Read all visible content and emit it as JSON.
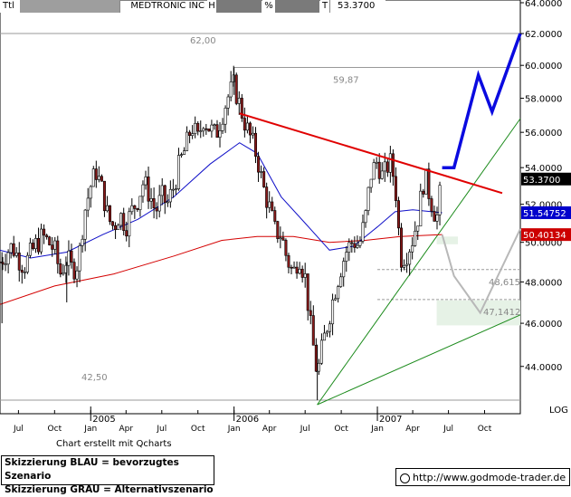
{
  "header": {
    "ticker": "Ttl",
    "name": "MEDTRONIC INC",
    "field_h": "H",
    "field_pct": "%",
    "field_t": "T",
    "last": "53.3700"
  },
  "chart_data": {
    "type": "candlestick",
    "y_scale": "log",
    "y_ticks": [
      {
        "value": 64.0,
        "label": "64.0000"
      },
      {
        "value": 62.0,
        "label": "62.0000"
      },
      {
        "value": 60.0,
        "label": "60.0000"
      },
      {
        "value": 58.0,
        "label": "58.0000"
      },
      {
        "value": 56.0,
        "label": "56.0000"
      },
      {
        "value": 54.0,
        "label": "54.0000"
      },
      {
        "value": 52.0,
        "label": "52.0000"
      },
      {
        "value": 50.0,
        "label": "50.0000"
      },
      {
        "value": 48.0,
        "label": "48.0000"
      },
      {
        "value": 46.0,
        "label": "46.0000"
      },
      {
        "value": 44.0,
        "label": "44.0000"
      }
    ],
    "ylim": [
      42.3,
      64.0
    ],
    "x_range": [
      "2004-05-15",
      "2007-12-31"
    ],
    "x_ticks": [
      {
        "date": "2004-07-01",
        "label": "Jul"
      },
      {
        "date": "2004-10-01",
        "label": "Oct"
      },
      {
        "date": "2005-01-01",
        "label": "Jan",
        "year": "2005"
      },
      {
        "date": "2005-04-01",
        "label": "Apr"
      },
      {
        "date": "2005-07-01",
        "label": "Jul"
      },
      {
        "date": "2005-10-01",
        "label": "Oct"
      },
      {
        "date": "2006-01-01",
        "label": "Jan",
        "year": "2006"
      },
      {
        "date": "2006-04-01",
        "label": "Apr"
      },
      {
        "date": "2006-07-01",
        "label": "Jul"
      },
      {
        "date": "2006-10-01",
        "label": "Oct"
      },
      {
        "date": "2007-01-01",
        "label": "Jan",
        "year": "2007"
      },
      {
        "date": "2007-04-01",
        "label": "Apr"
      },
      {
        "date": "2007-07-01",
        "label": "Jul"
      },
      {
        "date": "2007-10-01",
        "label": "Oct"
      }
    ],
    "log_label": "LOG",
    "price_series": [
      [
        "2004-05-15",
        49.0
      ],
      [
        "2004-06-01",
        49.5
      ],
      [
        "2004-06-15",
        49.8
      ],
      [
        "2004-07-01",
        49.2
      ],
      [
        "2004-07-15",
        48.8
      ],
      [
        "2004-08-01",
        49.4
      ],
      [
        "2004-08-15",
        49.9
      ],
      [
        "2004-09-01",
        50.3
      ],
      [
        "2004-09-15",
        50.0
      ],
      [
        "2004-10-01",
        49.6
      ],
      [
        "2004-10-15",
        48.4
      ],
      [
        "2004-11-01",
        49.2
      ],
      [
        "2004-11-15",
        48.6
      ],
      [
        "2004-12-01",
        49.0
      ],
      [
        "2004-12-15",
        51.5
      ],
      [
        "2005-01-01",
        53.0
      ],
      [
        "2005-01-15",
        53.8
      ],
      [
        "2005-02-01",
        52.6
      ],
      [
        "2005-02-15",
        51.2
      ],
      [
        "2005-03-01",
        50.8
      ],
      [
        "2005-03-15",
        51.5
      ],
      [
        "2005-04-01",
        50.9
      ],
      [
        "2005-04-15",
        51.6
      ],
      [
        "2005-05-01",
        52.3
      ],
      [
        "2005-05-15",
        53.2
      ],
      [
        "2005-06-01",
        52.5
      ],
      [
        "2005-06-15",
        51.6
      ],
      [
        "2005-07-01",
        52.4
      ],
      [
        "2005-07-15",
        52.0
      ],
      [
        "2005-08-01",
        53.0
      ],
      [
        "2005-08-15",
        54.2
      ],
      [
        "2005-09-01",
        55.2
      ],
      [
        "2005-09-15",
        56.4
      ],
      [
        "2005-10-01",
        55.6
      ],
      [
        "2005-10-15",
        56.8
      ],
      [
        "2005-11-01",
        56.2
      ],
      [
        "2005-11-15",
        55.8
      ],
      [
        "2005-12-01",
        57.0
      ],
      [
        "2005-12-15",
        58.0
      ],
      [
        "2006-01-01",
        58.8
      ],
      [
        "2006-01-15",
        57.6
      ],
      [
        "2006-02-01",
        56.3
      ],
      [
        "2006-02-15",
        55.5
      ],
      [
        "2006-03-01",
        54.6
      ],
      [
        "2006-03-15",
        53.0
      ],
      [
        "2006-04-01",
        51.8
      ],
      [
        "2006-04-15",
        50.6
      ],
      [
        "2006-05-01",
        50.4
      ],
      [
        "2006-05-15",
        49.2
      ],
      [
        "2006-06-01",
        48.4
      ],
      [
        "2006-06-15",
        49.4
      ],
      [
        "2006-07-01",
        48.2
      ],
      [
        "2006-07-15",
        45.8
      ],
      [
        "2006-08-01",
        43.6
      ],
      [
        "2006-08-15",
        45.0
      ],
      [
        "2006-09-01",
        46.4
      ],
      [
        "2006-09-15",
        47.6
      ],
      [
        "2006-10-01",
        48.8
      ],
      [
        "2006-10-15",
        49.6
      ],
      [
        "2006-11-01",
        50.1
      ],
      [
        "2006-11-15",
        49.8
      ],
      [
        "2006-12-01",
        51.2
      ],
      [
        "2006-12-15",
        53.6
      ],
      [
        "2007-01-01",
        54.4
      ],
      [
        "2007-01-15",
        53.4
      ],
      [
        "2007-02-01",
        54.4
      ],
      [
        "2007-02-15",
        53.2
      ],
      [
        "2007-03-01",
        49.2
      ],
      [
        "2007-03-15",
        49.4
      ],
      [
        "2007-04-01",
        50.2
      ],
      [
        "2007-04-15",
        51.4
      ],
      [
        "2007-05-01",
        53.6
      ],
      [
        "2007-05-15",
        52.4
      ],
      [
        "2007-06-01",
        51.2
      ],
      [
        "2007-06-15",
        53.37
      ]
    ],
    "ma_blue": [
      [
        "2004-05-15",
        49.6
      ],
      [
        "2004-08-01",
        49.2
      ],
      [
        "2004-11-01",
        49.5
      ],
      [
        "2005-02-01",
        50.4
      ],
      [
        "2005-05-01",
        51.2
      ],
      [
        "2005-08-01",
        52.4
      ],
      [
        "2005-11-01",
        54.2
      ],
      [
        "2006-01-15",
        55.4
      ],
      [
        "2006-03-01",
        54.8
      ],
      [
        "2006-05-01",
        52.4
      ],
      [
        "2006-07-01",
        51.0
      ],
      [
        "2006-09-01",
        49.6
      ],
      [
        "2006-11-01",
        49.8
      ],
      [
        "2007-01-01",
        50.8
      ],
      [
        "2007-02-15",
        51.6
      ],
      [
        "2007-04-01",
        51.7
      ],
      [
        "2007-06-15",
        51.55
      ]
    ],
    "ma_red": [
      [
        "2004-05-15",
        46.9
      ],
      [
        "2004-10-01",
        47.8
      ],
      [
        "2005-03-01",
        48.4
      ],
      [
        "2005-08-01",
        49.3
      ],
      [
        "2005-12-01",
        50.1
      ],
      [
        "2006-03-01",
        50.3
      ],
      [
        "2006-06-01",
        50.3
      ],
      [
        "2006-09-01",
        50.0
      ],
      [
        "2006-12-01",
        50.1
      ],
      [
        "2007-03-01",
        50.3
      ],
      [
        "2007-06-15",
        50.4
      ]
    ],
    "value_badges": [
      {
        "label": "53.3700",
        "value": 53.37,
        "color": "#000000"
      },
      {
        "label": "51.54752",
        "value": 51.55,
        "color": "#0000cc"
      },
      {
        "label": "50.40134",
        "value": 50.4,
        "color": "#cc0000"
      }
    ],
    "annotations": [
      {
        "label": "62,00",
        "value": 62.0,
        "color": "#888888"
      },
      {
        "label": "59,87",
        "value": 59.87,
        "color": "#888888"
      },
      {
        "label": "48,615",
        "value": 48.615,
        "color": "#888888"
      },
      {
        "label": "47,1412",
        "value": 47.1412,
        "color": "#888888"
      },
      {
        "label": "42,50",
        "value": 42.5,
        "color": "#888888"
      }
    ],
    "trendline_red": [
      [
        "2006-01-15",
        57.1
      ],
      [
        "2007-11-15",
        52.6
      ]
    ],
    "trendline_green_1": [
      [
        "2006-08-01",
        42.3
      ],
      [
        "2007-12-31",
        56.8
      ]
    ],
    "trendline_green_2": [
      [
        "2006-08-01",
        42.3
      ],
      [
        "2007-12-31",
        46.4
      ]
    ],
    "scenario_blue": [
      [
        "2007-06-15",
        54.0
      ],
      [
        "2007-07-15",
        54.0
      ],
      [
        "2007-09-15",
        59.4
      ],
      [
        "2007-10-20",
        57.2
      ],
      [
        "2007-12-31",
        62.0
      ]
    ],
    "scenario_grey": [
      [
        "2007-06-15",
        50.4
      ],
      [
        "2007-07-15",
        48.3
      ],
      [
        "2007-09-20",
        46.5
      ],
      [
        "2007-12-31",
        50.7
      ]
    ],
    "zone_upper": {
      "x": [
        "2007-06-01",
        "2007-07-25"
      ],
      "y": [
        50.3,
        49.9
      ]
    },
    "zone_lower": {
      "x": [
        "2007-06-01",
        "2007-12-31"
      ],
      "y": [
        47.1,
        45.9
      ]
    }
  },
  "footer": {
    "credit": "Chart erstellt mit Qcharts",
    "legend_blue": "Skizzierung BLAU = bevorzugtes Szenario",
    "legend_grey": "Skizzierung GRAU = Alternativszenario",
    "url": "http://www.godmode-trader.de"
  }
}
